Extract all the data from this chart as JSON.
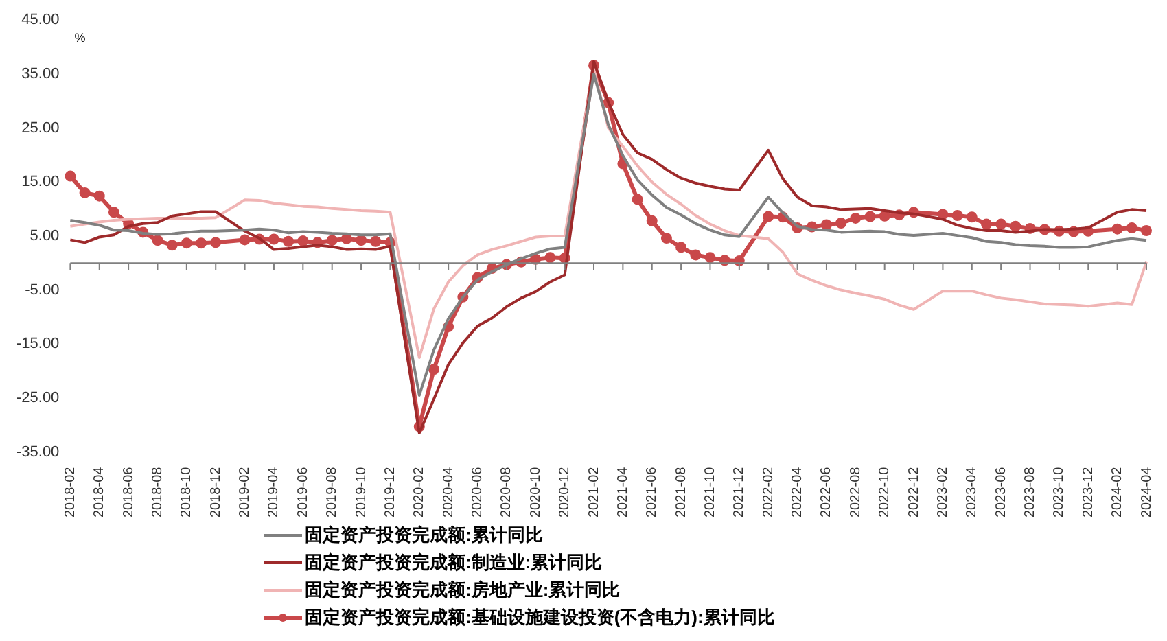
{
  "chart_data": {
    "type": "line",
    "ylabel": "%",
    "categories": [
      "2018-02",
      null,
      "2018-04",
      null,
      "2018-06",
      null,
      "2018-08",
      null,
      "2018-10",
      null,
      "2018-12",
      null,
      "2019-02",
      null,
      "2019-04",
      null,
      "2019-06",
      null,
      "2019-08",
      null,
      "2019-10",
      null,
      "2019-12",
      null,
      "2020-02",
      null,
      "2020-04",
      null,
      "2020-06",
      null,
      "2020-08",
      null,
      "2020-10",
      null,
      "2020-12",
      null,
      "2021-02",
      null,
      "2021-04",
      null,
      "2021-06",
      null,
      "2021-08",
      null,
      "2021-10",
      null,
      "2021-12",
      null,
      "2022-02",
      null,
      "2022-04",
      null,
      "2022-06",
      null,
      "2022-08",
      null,
      "2022-10",
      null,
      "2022-12",
      null,
      "2023-02",
      null,
      "2023-04",
      null,
      "2023-06",
      null,
      "2023-08",
      null,
      "2023-10",
      null,
      "2023-12",
      null,
      "2024-02",
      null,
      "2024-04"
    ],
    "series": [
      {
        "name": "固定资产投资完成额:累计同比",
        "color": "#808080",
        "values": [
          7.9,
          7.5,
          7.0,
          6.1,
          6.0,
          5.5,
          5.3,
          5.4,
          5.7,
          5.9,
          5.9,
          null,
          6.1,
          6.3,
          6.1,
          5.6,
          5.8,
          5.7,
          5.5,
          5.4,
          5.2,
          5.2,
          5.4,
          null,
          -24.5,
          -16.1,
          -10.3,
          -6.3,
          -3.1,
          -1.6,
          -0.3,
          0.8,
          1.8,
          2.6,
          2.9,
          null,
          35.0,
          25.6,
          19.9,
          15.4,
          12.6,
          10.3,
          8.9,
          7.3,
          6.1,
          5.2,
          4.9,
          null,
          12.2,
          9.3,
          6.8,
          6.2,
          6.1,
          5.7,
          5.8,
          5.9,
          5.8,
          5.3,
          5.1,
          null,
          5.5,
          5.1,
          4.7,
          4.0,
          3.8,
          3.4,
          3.2,
          3.1,
          2.9,
          2.9,
          3.0,
          null,
          4.2,
          4.5,
          4.2
        ]
      },
      {
        "name": "固定资产投资完成额:制造业:累计同比",
        "color": "#9e2a2b",
        "values": [
          4.3,
          3.8,
          4.8,
          5.2,
          6.8,
          7.3,
          7.5,
          8.7,
          9.1,
          9.5,
          9.5,
          null,
          5.9,
          4.6,
          2.5,
          2.7,
          3.0,
          3.3,
          3.0,
          2.5,
          2.6,
          2.5,
          3.1,
          null,
          -31.5,
          -25.2,
          -18.8,
          -14.8,
          -11.7,
          -10.2,
          -8.1,
          -6.5,
          -5.3,
          -3.5,
          -2.2,
          null,
          37.3,
          29.8,
          23.8,
          20.4,
          19.2,
          17.3,
          15.7,
          14.8,
          14.2,
          13.7,
          13.5,
          null,
          20.9,
          15.6,
          12.2,
          10.6,
          10.4,
          9.9,
          10.0,
          10.1,
          9.7,
          9.3,
          9.1,
          null,
          8.1,
          7.0,
          6.4,
          6.0,
          6.0,
          5.7,
          5.9,
          6.2,
          6.2,
          6.3,
          6.5,
          null,
          9.4,
          9.9,
          9.7
        ]
      },
      {
        "name": "固定资产投资完成额:房地产业:累计同比",
        "color": "#f0b4b4",
        "values": [
          6.8,
          7.2,
          7.6,
          7.9,
          8.1,
          8.2,
          8.3,
          8.3,
          8.3,
          8.3,
          8.4,
          null,
          11.7,
          11.6,
          11.1,
          10.8,
          10.5,
          10.4,
          10.1,
          9.9,
          9.7,
          9.6,
          9.4,
          null,
          -17.5,
          -8.5,
          -3.5,
          -0.5,
          1.5,
          2.5,
          3.2,
          4.0,
          4.8,
          5.0,
          5.0,
          null,
          36.0,
          25.0,
          21.6,
          18.0,
          15.0,
          12.7,
          10.9,
          8.8,
          7.2,
          6.0,
          5.1,
          null,
          4.5,
          2.0,
          -2.0,
          -3.2,
          -4.2,
          -5.0,
          -5.6,
          -6.1,
          -6.7,
          -7.8,
          -8.6,
          null,
          -5.2,
          -5.2,
          -5.2,
          -5.9,
          -6.5,
          -6.8,
          -7.2,
          -7.6,
          -7.7,
          -7.8,
          -8.0,
          null,
          -7.4,
          -7.7,
          0.2
        ]
      },
      {
        "name": "固定资产投资完成额:基础设施建设投资(不含电力):累计同比",
        "color": "#c9484a",
        "marker": "circle",
        "values": [
          16.1,
          13.0,
          12.4,
          9.4,
          7.3,
          5.7,
          4.2,
          3.3,
          3.7,
          3.7,
          3.8,
          null,
          4.3,
          4.4,
          4.4,
          4.0,
          4.1,
          3.8,
          4.2,
          4.5,
          4.2,
          4.0,
          3.8,
          null,
          -30.3,
          -19.7,
          -11.8,
          -6.3,
          -2.7,
          -1.0,
          -0.3,
          0.2,
          0.7,
          1.0,
          0.9,
          null,
          36.6,
          29.7,
          18.4,
          11.8,
          7.8,
          4.6,
          2.9,
          1.5,
          1.0,
          0.5,
          0.4,
          null,
          8.6,
          8.5,
          6.5,
          6.7,
          7.1,
          7.4,
          8.3,
          8.6,
          8.7,
          8.9,
          9.4,
          null,
          9.0,
          8.8,
          8.5,
          7.2,
          7.2,
          6.8,
          6.4,
          6.2,
          5.9,
          5.8,
          5.9,
          null,
          6.3,
          6.5,
          6.0
        ]
      }
    ],
    "ylim": [
      -35,
      45
    ],
    "yticks": [
      {
        "value": -35,
        "label": "-35.00"
      },
      {
        "value": -25,
        "label": "-25.00"
      },
      {
        "value": -15,
        "label": "-15.00"
      },
      {
        "value": -5,
        "label": "-5.00"
      },
      {
        "value": 5,
        "label": "5.00"
      },
      {
        "value": 15,
        "label": "15.00"
      },
      {
        "value": 25,
        "label": "25.00"
      },
      {
        "value": 35,
        "label": "35.00"
      },
      {
        "value": 45,
        "label": "45.00"
      }
    ],
    "grid": false,
    "legend": "bottom"
  }
}
